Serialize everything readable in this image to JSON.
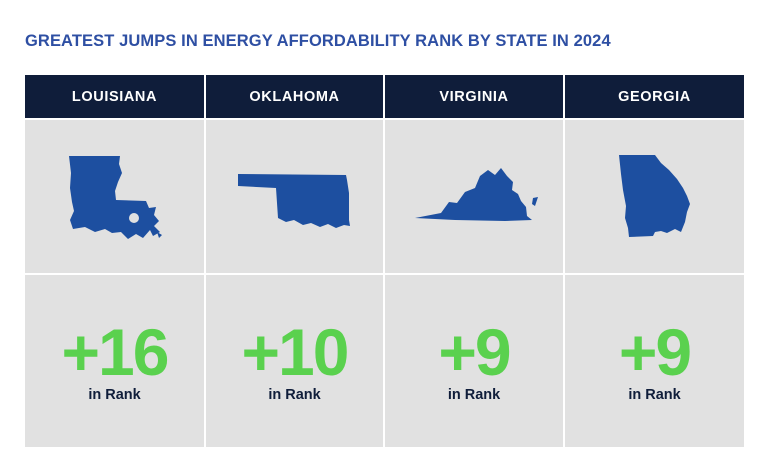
{
  "title": "GREATEST JUMPS IN ENERGY AFFORDABILITY RANK BY STATE IN 2024",
  "colors": {
    "title": "#2e4fa3",
    "header_bg": "#0f1d3a",
    "cell_bg": "#e1e1e1",
    "state_fill": "#1d4fa0",
    "value": "#5ad14e"
  },
  "states": [
    {
      "name": "LOUISIANA",
      "icon": "louisiana-map-icon",
      "change": "+16",
      "unit": "in Rank"
    },
    {
      "name": "OKLAHOMA",
      "icon": "oklahoma-map-icon",
      "change": "+10",
      "unit": "in Rank"
    },
    {
      "name": "VIRGINIA",
      "icon": "virginia-map-icon",
      "change": "+9",
      "unit": "in Rank"
    },
    {
      "name": "GEORGIA",
      "icon": "georgia-map-icon",
      "change": "+9",
      "unit": "in Rank"
    }
  ]
}
